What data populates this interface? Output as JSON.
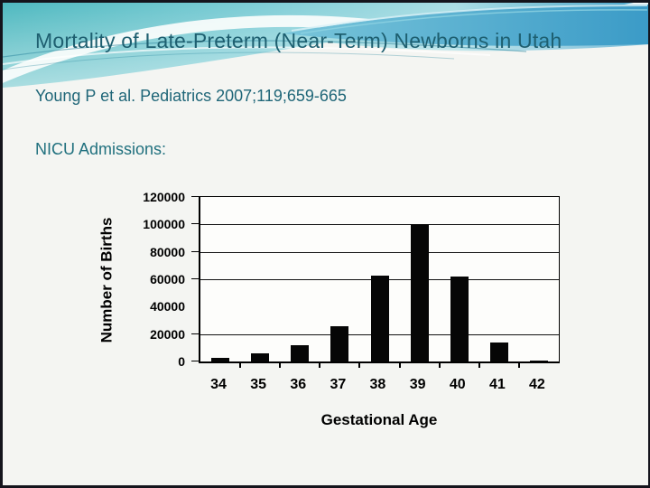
{
  "slide": {
    "title": "Mortality of Late-Preterm (Near-Term) Newborns in Utah",
    "citation": "Young P et al. Pediatrics 2007;119;659-665",
    "section_label": "NICU Admissions:"
  },
  "colors": {
    "title_text": "#1e5f70",
    "accent_teal": "#4fb9c0",
    "accent_blue": "#3f9dc8",
    "bar_fill": "#060606",
    "slide_background": "#f4f5f2",
    "frame_border": "#14141c"
  },
  "chart_data": {
    "type": "bar",
    "title": "",
    "categories": [
      "34",
      "35",
      "36",
      "37",
      "38",
      "39",
      "40",
      "41",
      "42"
    ],
    "values": [
      3000,
      6000,
      12000,
      26000,
      63000,
      100000,
      62000,
      14000,
      1000
    ],
    "xlabel": "Gestational Age",
    "ylabel": "Number of Births",
    "ylim": [
      0,
      120000
    ],
    "yticks": [
      120000,
      100000,
      80000,
      60000,
      40000,
      20000,
      0
    ],
    "gridline_values": [
      100000,
      80000,
      60000,
      20000
    ],
    "ytick_mark_values": [
      120000,
      100000,
      80000,
      60000,
      20000,
      0
    ],
    "grid": "horizontal",
    "legend_position": "none",
    "bar_color": "#060606"
  }
}
